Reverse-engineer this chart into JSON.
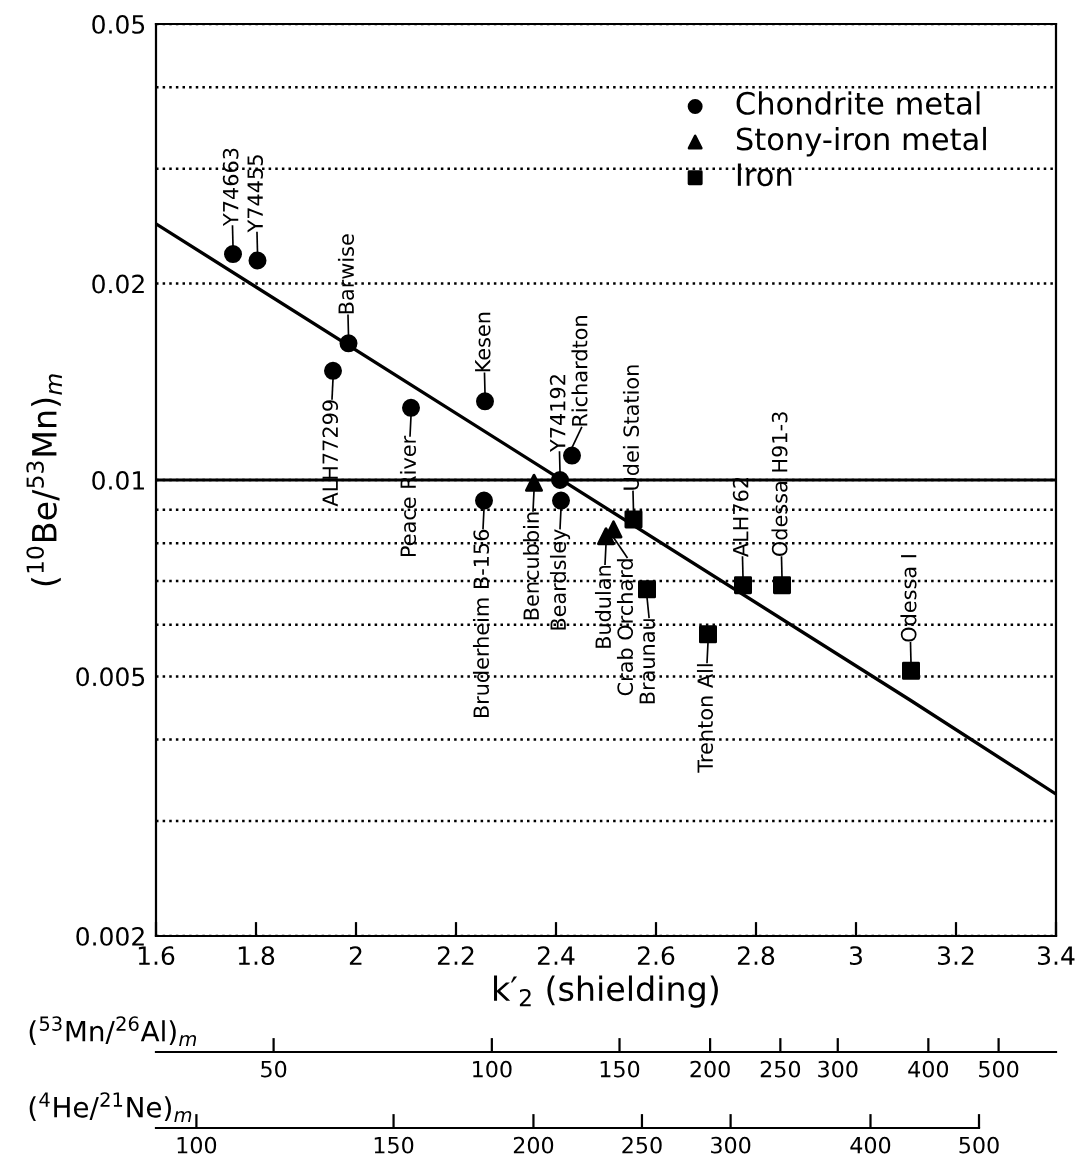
{
  "chart_data": [
    {
      "type": "scatter",
      "xlabel": "k′$_{2}$ (shielding)",
      "ylabel": "($^{10}$Be/$^{53}$Mn)$_{m}$",
      "xlim": [
        1.6,
        3.4
      ],
      "xticks": [
        1.6,
        1.8,
        2,
        2.2,
        2.4,
        2.6,
        2.8,
        3,
        3.2,
        3.4
      ],
      "ylim": [
        0.002,
        0.05
      ],
      "log": "y",
      "grid": "y",
      "yticks": [
        0.002,
        {
          "value": 0.003,
          "label": null
        },
        {
          "value": 0.004,
          "label": null
        },
        0.005,
        {
          "value": 0.006,
          "label": null
        },
        {
          "value": 0.007,
          "label": null
        },
        {
          "value": 0.008,
          "label": null
        },
        {
          "value": 0.009,
          "label": null
        },
        0.01,
        0.02,
        {
          "value": 0.03,
          "label": null
        },
        {
          "value": 0.04,
          "label": null
        },
        0.05
      ],
      "ref_lines": [
        {
          "axis": "y",
          "value": 0.01,
          "color": "#000000",
          "line_style": "solid"
        }
      ],
      "legend": "top right",
      "series": [
        {
          "name": "Chondrite metal",
          "marker": "circle",
          "color": "#000000",
          "x": [
            1.754,
            1.803,
            1.985,
            1.954,
            2.11,
            2.258,
            2.432,
            2.256,
            2.408,
            2.41
          ],
          "values": [
            0.0222,
            0.0217,
            0.0162,
            0.0147,
            0.0129,
            0.0132,
            0.0109,
            0.0093,
            0.01,
            0.0093
          ]
        },
        {
          "name": "Stony-iron metal",
          "marker": "triangle",
          "color": "#000000",
          "x": [
            2.356,
            2.5,
            2.515
          ],
          "values": [
            0.0099,
            0.0082,
            0.0084
          ]
        },
        {
          "name": "Iron",
          "marker": "square",
          "color": "#000000",
          "x": [
            2.555,
            2.582,
            2.774,
            2.852,
            2.704,
            3.11
          ],
          "values": [
            0.0087,
            0.0068,
            0.0069,
            0.0069,
            0.0058,
            0.0051
          ]
        },
        {
          "type": "line",
          "color": "#000000",
          "x": [
            1.6,
            3.108,
            3.4
          ],
          "values": [
            0.0247,
            0.0046,
            0.0033
          ]
        }
      ],
      "annotations": [
        {
          "text": "Y74663",
          "x": 1.754,
          "y": 0.0222
        },
        {
          "text": "Y74455",
          "x": 1.803,
          "y": 0.0217
        },
        {
          "text": "Barwise",
          "x": 1.985,
          "y": 0.0162
        },
        {
          "text": "ALH77299",
          "x": 1.954,
          "y": 0.0147
        },
        {
          "text": "Peace River",
          "x": 2.11,
          "y": 0.0129
        },
        {
          "text": "Kesen",
          "x": 2.258,
          "y": 0.0132
        },
        {
          "text": "Richardton",
          "x": 2.432,
          "y": 0.0109
        },
        {
          "text": "Bruderheim B-156",
          "x": 2.256,
          "y": 0.0093
        },
        {
          "text": "Y74192",
          "x": 2.408,
          "y": 0.01
        },
        {
          "text": "Beardsley",
          "x": 2.41,
          "y": 0.0093
        },
        {
          "text": "Bencubbin",
          "x": 2.356,
          "y": 0.0099
        },
        {
          "text": "Budulan",
          "x": 2.5,
          "y": 0.0082
        },
        {
          "text": "Crab Orchard",
          "x": 2.515,
          "y": 0.0084
        },
        {
          "text": "Udei Station",
          "x": 2.555,
          "y": 0.0087
        },
        {
          "text": "Braunau",
          "x": 2.582,
          "y": 0.0068
        },
        {
          "text": "ALH762",
          "x": 2.774,
          "y": 0.0069
        },
        {
          "text": "Odessa H91-3",
          "x": 2.852,
          "y": 0.0069
        },
        {
          "text": "Trenton All",
          "x": 2.704,
          "y": 0.0058
        },
        {
          "text": "Odessa I",
          "x": 3.11,
          "y": 0.0051
        }
      ]
    },
    {
      "type": "other",
      "xlabel": "($^{53}$Mn/$^{26}$Al)$_{m}$",
      "annotations": [
        "50",
        "100",
        "150",
        "200",
        "250",
        "300",
        "400",
        "500"
      ]
    },
    {
      "type": "other",
      "xlabel": "($^{4}$He/$^{21}$Ne)$_{m}$",
      "annotations": [
        "100",
        "150",
        "200",
        "250",
        "300",
        "400",
        "500"
      ]
    }
  ]
}
